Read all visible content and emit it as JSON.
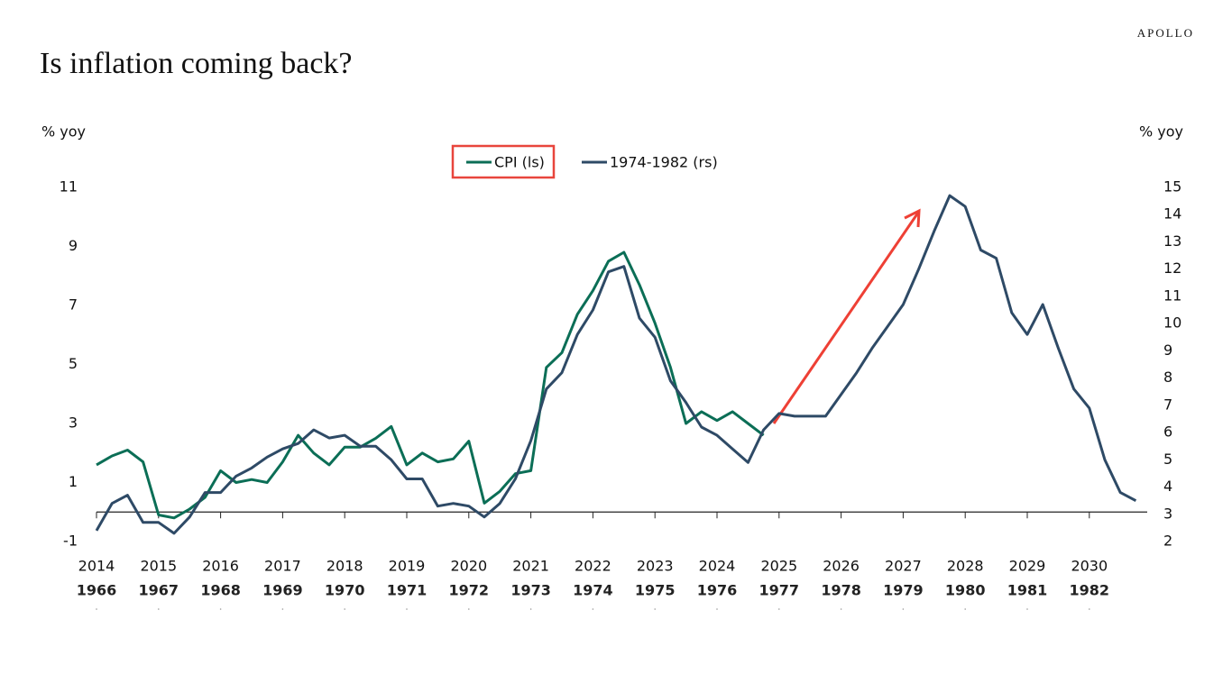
{
  "brand": "APOLLO",
  "chart_data": {
    "type": "line",
    "title": "Is inflation coming back?",
    "y_label": "% yoy",
    "y2_label": "% yoy",
    "x": [
      2014,
      2014.25,
      2014.5,
      2014.75,
      2015,
      2015.25,
      2015.5,
      2015.75,
      2016,
      2016.25,
      2016.5,
      2016.75,
      2017,
      2017.25,
      2017.5,
      2017.75,
      2018,
      2018.25,
      2018.5,
      2018.75,
      2019,
      2019.25,
      2019.5,
      2019.75,
      2020,
      2020.25,
      2020.5,
      2020.75,
      2021,
      2021.25,
      2021.5,
      2021.75,
      2022,
      2022.25,
      2022.5,
      2022.75,
      2023,
      2023.25,
      2023.5,
      2023.75,
      2024,
      2024.25,
      2024.5,
      2024.75,
      2025,
      2025.25,
      2025.5,
      2025.75,
      2026,
      2026.25,
      2026.5,
      2026.75,
      2027,
      2027.25,
      2027.5,
      2027.75,
      2028,
      2028.25,
      2028.5,
      2028.75,
      2029,
      2029.25,
      2029.5,
      2029.75,
      2030,
      2030.25,
      2030.5,
      2030.75
    ],
    "series": [
      {
        "name": "CPI (ls)",
        "color": "#0b6e56",
        "axis": "y",
        "values": [
          1.6,
          1.9,
          2.1,
          1.7,
          -0.1,
          -0.2,
          0.1,
          0.5,
          1.4,
          1.0,
          1.1,
          1.0,
          1.7,
          2.6,
          2.0,
          1.6,
          2.2,
          2.2,
          2.5,
          2.9,
          1.6,
          2.0,
          1.7,
          1.8,
          2.4,
          0.3,
          0.7,
          1.3,
          1.4,
          4.9,
          5.4,
          6.7,
          7.5,
          8.5,
          8.8,
          7.7,
          6.4,
          4.9,
          3.0,
          3.4,
          3.1,
          3.4,
          3.0,
          2.6,
          null,
          null,
          null,
          null,
          null,
          null,
          null,
          null,
          null,
          null,
          null,
          null,
          null,
          null,
          null,
          null,
          null,
          null,
          null,
          null,
          null,
          null,
          null,
          null
        ]
      },
      {
        "name": "1974-1982 (rs)",
        "color": "#2e4a66",
        "axis": "y2",
        "values": [
          2.4,
          3.4,
          3.7,
          2.7,
          2.7,
          2.3,
          2.9,
          3.8,
          3.8,
          4.4,
          4.7,
          5.1,
          5.4,
          5.6,
          6.1,
          5.8,
          5.9,
          5.5,
          5.5,
          5.0,
          4.3,
          4.3,
          3.3,
          3.4,
          3.3,
          2.9,
          3.4,
          4.3,
          5.7,
          7.6,
          8.2,
          9.6,
          10.5,
          11.9,
          12.1,
          10.2,
          9.5,
          7.9,
          7.1,
          6.2,
          5.9,
          5.4,
          4.9,
          6.1,
          6.7,
          6.6,
          6.6,
          6.6,
          7.4,
          8.2,
          9.1,
          9.9,
          10.7,
          12.0,
          13.4,
          14.7,
          14.3,
          12.7,
          12.4,
          10.4,
          9.6,
          10.7,
          9.1,
          7.6,
          6.9,
          5.0,
          3.8,
          3.5
        ]
      }
    ],
    "xlim": [
      2014,
      2031
    ],
    "xticks": [
      2014,
      2015,
      2016,
      2017,
      2018,
      2019,
      2020,
      2021,
      2022,
      2023,
      2024,
      2025,
      2026,
      2027,
      2028,
      2029,
      2030
    ],
    "x2lim": [
      1966,
      1983
    ],
    "x2ticks": [
      1966,
      1967,
      1968,
      1969,
      1970,
      1971,
      1972,
      1973,
      1974,
      1975,
      1976,
      1977,
      1978,
      1979,
      1980,
      1981,
      1982
    ],
    "ylim": [
      -1,
      11
    ],
    "yticks": [
      -1,
      1,
      3,
      5,
      7,
      9,
      11
    ],
    "y2lim": [
      2,
      15
    ],
    "y2ticks": [
      2,
      3,
      4,
      5,
      6,
      7,
      8,
      9,
      10,
      11,
      12,
      13,
      14,
      15
    ],
    "grid": false,
    "legend": "top"
  }
}
